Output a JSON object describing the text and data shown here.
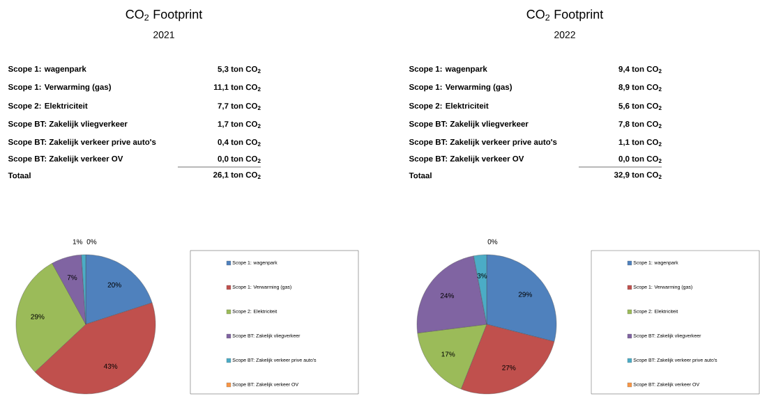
{
  "chart_data": [
    {
      "type": "pie",
      "title": "CO$_{2}$ Footprint",
      "subtitle": "2021",
      "categories": [
        "Scope 1: wagenpark",
        "Scope 1: Verwarming (gas)",
        "Scope 2: Elektriciteit",
        "Scope BT: Zakelijk vliegverkeer",
        "Scope BT: Zakelijk verkeer prive auto's",
        "Scope BT: Zakelijk verkeer OV"
      ],
      "values": [
        20,
        43,
        29,
        7,
        1,
        0
      ],
      "colors": [
        "#4f81bd",
        "#c0504d",
        "#9bbb59",
        "#8064a2",
        "#4bacc6",
        "#f79646"
      ],
      "value_labels": [
        "20%",
        "43%",
        "29%",
        "7%",
        "1%",
        "0%"
      ],
      "annotations": [
        "5,3 ton CO$_{2}$",
        "11,1 ton CO$_{2}$",
        "7,7 ton CO$_{2}$",
        "1,7 ton CO$_{2}$",
        "0,4 ton CO$_{2}$",
        "0,0 ton CO$_{2}$",
        "Totaal",
        "26,1 ton CO$_{2}$"
      ],
      "legend": "right"
    },
    {
      "type": "pie",
      "title": "CO$_{2}$ Footprint",
      "subtitle": "2022",
      "categories": [
        "Scope 1: wagenpark",
        "Scope 1: Verwarming (gas)",
        "Scope 2: Elektriciteit",
        "Scope BT: Zakelijk vliegverkeer",
        "Scope BT: Zakelijk verkeer prive auto's",
        "Scope BT: Zakelijk verkeer OV"
      ],
      "values": [
        29,
        27,
        17,
        24,
        3,
        0
      ],
      "colors": [
        "#4f81bd",
        "#c0504d",
        "#9bbb59",
        "#8064a2",
        "#4bacc6",
        "#f79646"
      ],
      "value_labels": [
        "29%",
        "27%",
        "17%",
        "24%",
        "3%",
        "0%"
      ],
      "annotations": [
        "9,4 ton CO$_{2}$",
        "8,9 ton CO$_{2}$",
        "5,6 ton CO$_{2}$",
        "7,8 ton CO$_{2}$",
        "1,1 ton CO$_{2}$",
        "0,0 ton CO$_{2}$",
        "Totaal",
        "32,9 ton CO$_{2}$"
      ],
      "legend": "right"
    }
  ]
}
